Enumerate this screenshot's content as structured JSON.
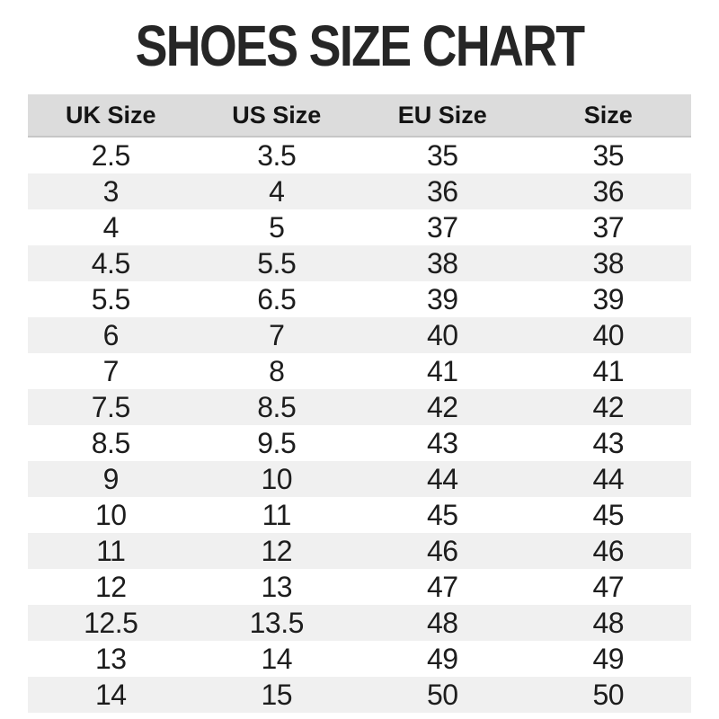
{
  "chart_data": {
    "type": "table",
    "title": "SHOES SIZE CHART",
    "columns": [
      "UK Size",
      "US Size",
      "EU Size",
      "Size"
    ],
    "rows": [
      [
        "2.5",
        "3.5",
        "35",
        "35"
      ],
      [
        "3",
        "4",
        "36",
        "36"
      ],
      [
        "4",
        "5",
        "37",
        "37"
      ],
      [
        "4.5",
        "5.5",
        "38",
        "38"
      ],
      [
        "5.5",
        "6.5",
        "39",
        "39"
      ],
      [
        "6",
        "7",
        "40",
        "40"
      ],
      [
        "7",
        "8",
        "41",
        "41"
      ],
      [
        "7.5",
        "8.5",
        "42",
        "42"
      ],
      [
        "8.5",
        "9.5",
        "43",
        "43"
      ],
      [
        "9",
        "10",
        "44",
        "44"
      ],
      [
        "10",
        "11",
        "45",
        "45"
      ],
      [
        "11",
        "12",
        "46",
        "46"
      ],
      [
        "12",
        "13",
        "47",
        "47"
      ],
      [
        "12.5",
        "13.5",
        "48",
        "48"
      ],
      [
        "13",
        "14",
        "49",
        "49"
      ],
      [
        "14",
        "15",
        "50",
        "50"
      ]
    ],
    "layout": {
      "legend": "none",
      "grid": "row-stripes",
      "stripe_pattern": "even-rows-gray"
    }
  },
  "colors": {
    "header_bg": "#dcdcdc",
    "alt_row_bg": "#f0f0f0",
    "row_bg": "#ffffff",
    "title_text": "#262626",
    "body_text": "#1d1d1d",
    "header_border": "#c6c6c6"
  }
}
